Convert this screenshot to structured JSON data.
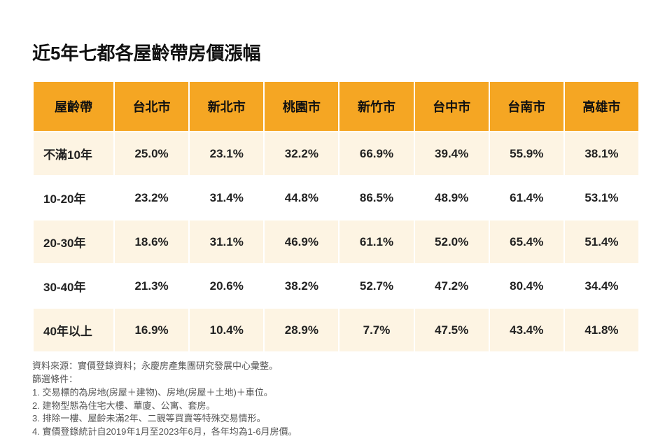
{
  "title": "近5年七都各屋齡帶房價漲幅",
  "table": {
    "headers": [
      "屋齡帶",
      "台北市",
      "新北市",
      "桃園市",
      "新竹市",
      "台中市",
      "台南市",
      "高雄市"
    ],
    "header_bg": "#f5a623",
    "band_a_bg": "#fdf4e3",
    "band_b_bg": "#ffffff",
    "highlight_color": "#d9241c",
    "title_fontsize": 26,
    "header_fontsize": 18,
    "cell_fontsize": 17,
    "rows": [
      {
        "label": "不滿10年",
        "band": "a",
        "cells": [
          {
            "v": "25.0%"
          },
          {
            "v": "23.1%"
          },
          {
            "v": "32.2%"
          },
          {
            "v": "66.9%"
          },
          {
            "v": "39.4%"
          },
          {
            "v": "55.9%"
          },
          {
            "v": "38.1%"
          }
        ]
      },
      {
        "label": "10-20年",
        "band": "b",
        "cells": [
          {
            "v": "23.2%"
          },
          {
            "v": "31.4%"
          },
          {
            "v": "44.8%"
          },
          {
            "v": "86.5%",
            "hl": true
          },
          {
            "v": "48.9%"
          },
          {
            "v": "61.4%"
          },
          {
            "v": "53.1%"
          }
        ]
      },
      {
        "label": "20-30年",
        "band": "a",
        "cells": [
          {
            "v": "18.6%"
          },
          {
            "v": "31.1%"
          },
          {
            "v": "46.9%"
          },
          {
            "v": "61.1%"
          },
          {
            "v": "52.0%"
          },
          {
            "v": "65.4%"
          },
          {
            "v": "51.4%"
          }
        ]
      },
      {
        "label": "30-40年",
        "band": "b",
        "cells": [
          {
            "v": "21.3%"
          },
          {
            "v": "20.6%"
          },
          {
            "v": "38.2%"
          },
          {
            "v": "52.7%"
          },
          {
            "v": "47.2%"
          },
          {
            "v": "80.4%",
            "hl": true
          },
          {
            "v": "34.4%"
          }
        ]
      },
      {
        "label": "40年以上",
        "band": "a",
        "cells": [
          {
            "v": "16.9%"
          },
          {
            "v": "10.4%"
          },
          {
            "v": "28.9%"
          },
          {
            "v": "7.7%"
          },
          {
            "v": "47.5%"
          },
          {
            "v": "43.4%"
          },
          {
            "v": "41.8%"
          }
        ]
      }
    ]
  },
  "sources": {
    "line1": "資料來源：實價登錄資料；永慶房產集團研究發展中心彙整。",
    "line2": "篩選條件：",
    "line3": "1. 交易標的為房地(房屋＋建物)、房地(房屋＋土地)＋車位。",
    "line4": "2. 建物型態為住宅大樓、華廈、公寓、套房。",
    "line5": "3. 排除一樓、屋齡未滿2年、二親等買賣等特殊交易情形。",
    "line6": "4. 實價登錄統計自2019年1月至2023年6月，各年均為1-6月房價。",
    "footnote_fontsize": 13,
    "footnote_color": "#555555"
  }
}
